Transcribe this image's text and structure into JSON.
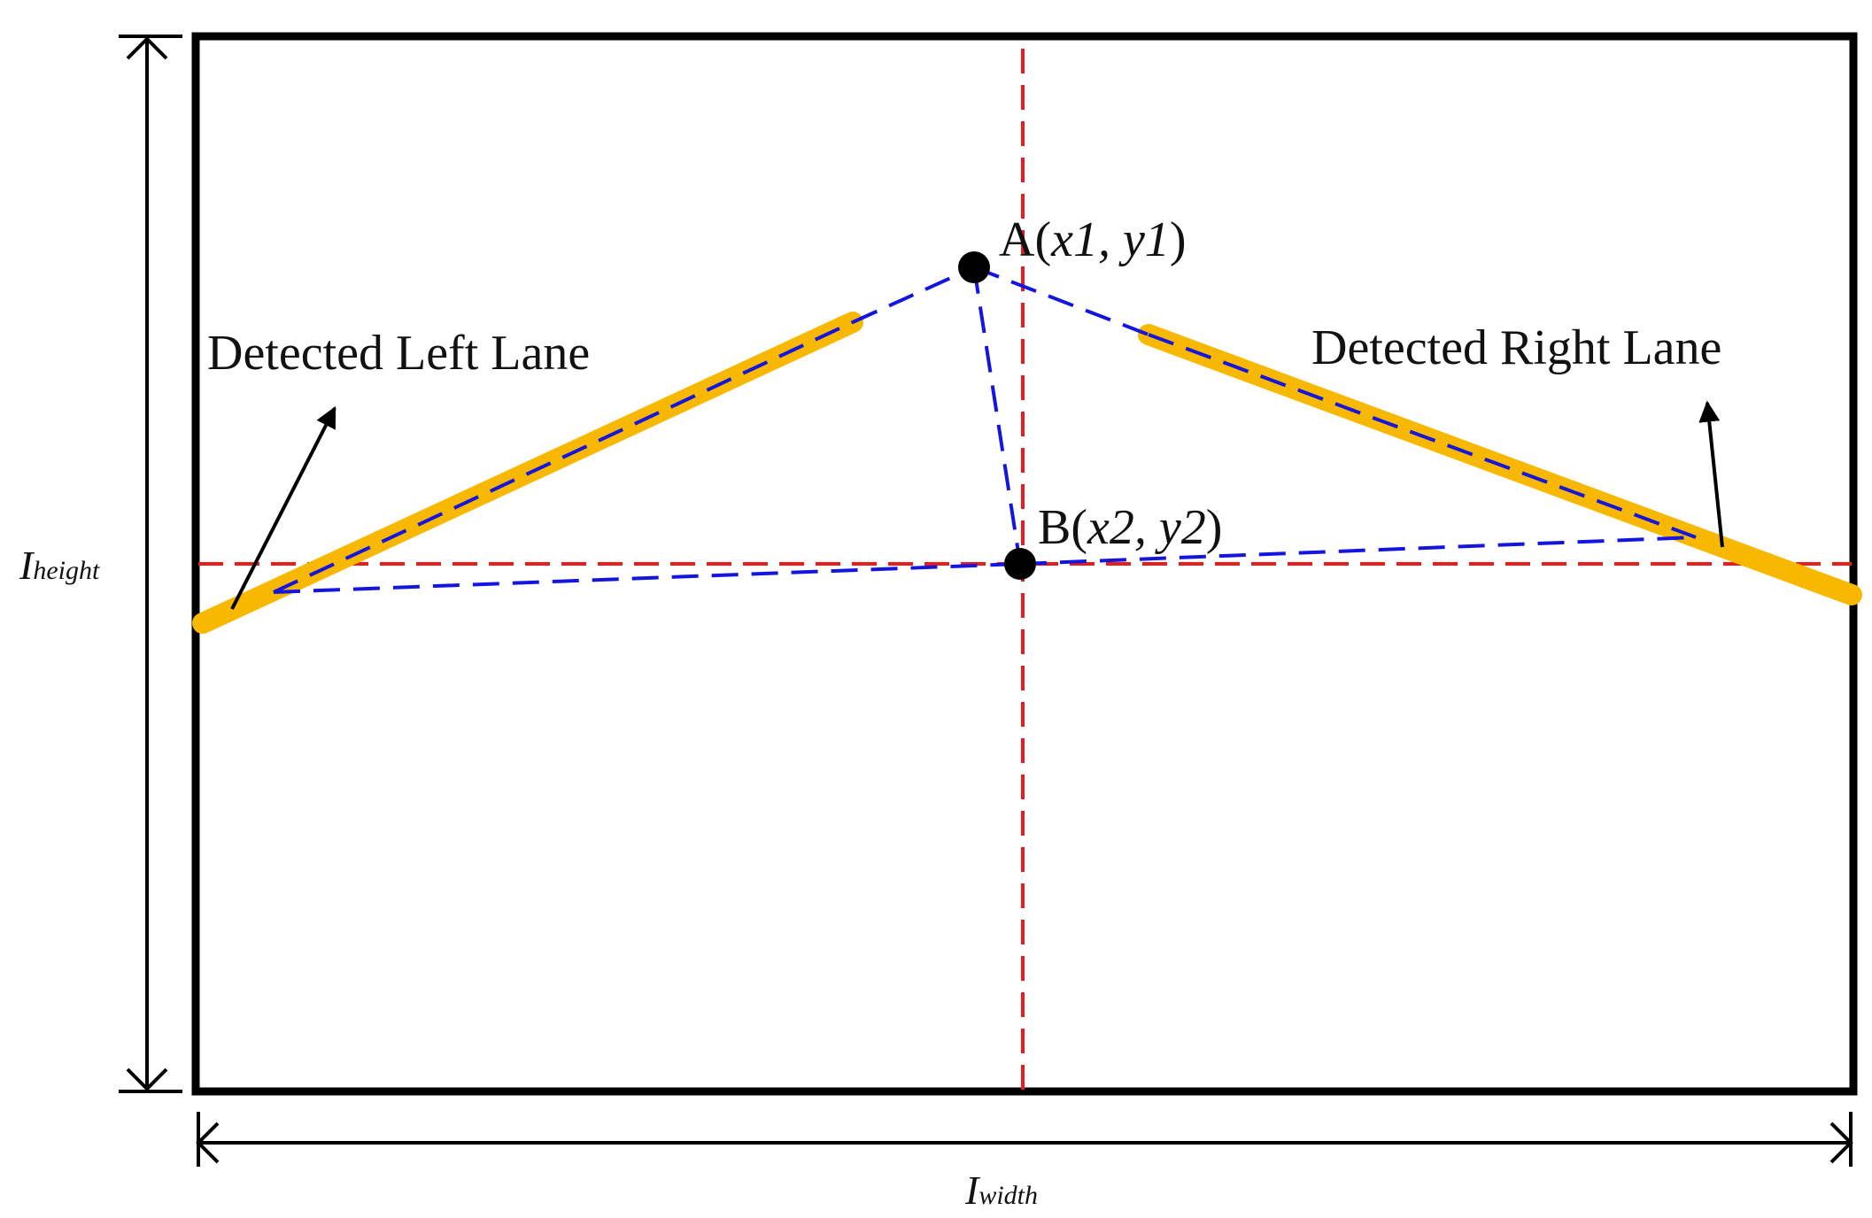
{
  "labels": {
    "left_lane": "Detected Left Lane",
    "right_lane": "Detected Right Lane",
    "point_a_prefix": "A(",
    "point_a_coords": "x1, y1",
    "point_a_suffix": ")",
    "point_b_prefix": "B(",
    "point_b_coords": "x2, y2",
    "point_b_suffix": ")",
    "height_main": "I",
    "height_sub": "height",
    "width_main": "I",
    "width_sub": "width"
  },
  "colors": {
    "frame": "#000000",
    "lane": "#F9B800",
    "blue_dash": "#1515E0",
    "red_dash": "#E81E1E",
    "point": "#000000"
  }
}
